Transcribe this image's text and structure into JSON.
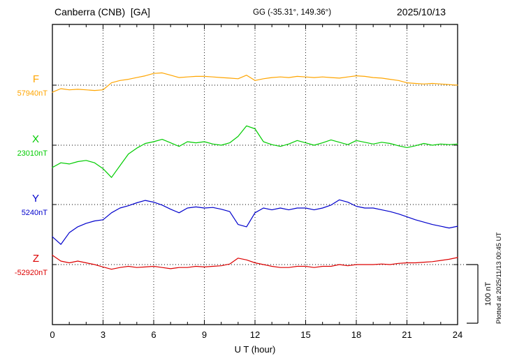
{
  "header": {
    "station": "Canberra (CNB)  [GA]",
    "coords": "GG (-35.31°, 149.36°)",
    "date": "2025/10/13"
  },
  "plotted_at": "Plotted at 2025/11/13 00:45 UT",
  "chart_data": {
    "type": "line",
    "title": "Canberra (CNB) magnetogram 2025/10/13",
    "xlabel": "U T (hour)",
    "x_unit": "hour UT",
    "xlim": [
      0,
      24
    ],
    "x_ticks": [
      0,
      3,
      6,
      9,
      12,
      15,
      18,
      21,
      24
    ],
    "grid": "dotted vertical at 3h intervals, dotted horizontal baseline per component",
    "legend_position": "left margin, one colored label per trace",
    "scale_nT": 100,
    "scale_label": "100 nT",
    "series": [
      {
        "name": "F",
        "color": "#FFA500",
        "baseline_nT": 57940,
        "baseline_label": "57940nT",
        "x_step_hours": 0.5,
        "offsets_nT": [
          -12,
          -6,
          -8,
          -7,
          -8,
          -9,
          -8,
          4,
          8,
          10,
          13,
          16,
          20,
          21,
          17,
          13,
          14,
          15,
          15,
          14,
          13,
          12,
          11,
          17,
          8,
          11,
          13,
          14,
          13,
          15,
          14,
          13,
          14,
          13,
          12,
          14,
          16,
          15,
          13,
          12,
          10,
          8,
          4,
          3,
          2,
          3,
          2,
          1,
          0
        ]
      },
      {
        "name": "X",
        "color": "#00CC00",
        "baseline_nT": 23010,
        "baseline_label": "23010nT",
        "x_step_hours": 0.5,
        "offsets_nT": [
          -38,
          -30,
          -32,
          -28,
          -26,
          -30,
          -40,
          -55,
          -35,
          -15,
          -5,
          3,
          6,
          10,
          4,
          -2,
          6,
          4,
          6,
          2,
          0,
          4,
          15,
          33,
          28,
          6,
          1,
          -2,
          2,
          8,
          4,
          0,
          4,
          9,
          5,
          1,
          8,
          5,
          2,
          5,
          3,
          -1,
          -4,
          -1,
          3,
          0,
          2,
          1,
          2
        ]
      },
      {
        "name": "Y",
        "color": "#0000CC",
        "baseline_nT": 5240,
        "baseline_label": "5240nT",
        "x_step_hours": 0.5,
        "offsets_nT": [
          -55,
          -68,
          -48,
          -38,
          -32,
          -28,
          -26,
          -14,
          -6,
          -2,
          3,
          7,
          4,
          -1,
          -8,
          -14,
          -6,
          -4,
          -6,
          -5,
          -8,
          -12,
          -34,
          -38,
          -14,
          -6,
          -9,
          -6,
          -9,
          -6,
          -6,
          -9,
          -6,
          -1,
          8,
          4,
          -3,
          -6,
          -6,
          -9,
          -12,
          -16,
          -21,
          -26,
          -30,
          -34,
          -37,
          -40,
          -37
        ]
      },
      {
        "name": "Z",
        "color": "#DD0000",
        "baseline_nT": -52920,
        "baseline_label": "-52920nT",
        "x_step_hours": 0.5,
        "offsets_nT": [
          16,
          6,
          3,
          6,
          3,
          0,
          -4,
          -8,
          -5,
          -3,
          -5,
          -4,
          -3,
          -5,
          -7,
          -5,
          -5,
          -3,
          -4,
          -3,
          -2,
          1,
          11,
          8,
          3,
          0,
          -3,
          -5,
          -5,
          -3,
          -3,
          -5,
          -3,
          -3,
          0,
          -2,
          0,
          0,
          0,
          1,
          0,
          2,
          3,
          3,
          4,
          5,
          7,
          9,
          12
        ]
      }
    ]
  }
}
